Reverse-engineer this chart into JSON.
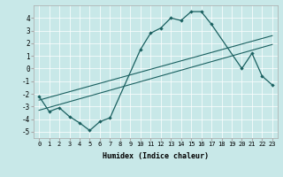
{
  "xlabel": "Humidex (Indice chaleur)",
  "background_color": "#c8e8e8",
  "line_color": "#1a6060",
  "grid_color": "#ffffff",
  "xlim": [
    -0.5,
    23.5
  ],
  "ylim": [
    -5.5,
    5.0
  ],
  "xticks": [
    0,
    1,
    2,
    3,
    4,
    5,
    6,
    7,
    8,
    9,
    10,
    11,
    12,
    13,
    14,
    15,
    16,
    17,
    18,
    19,
    20,
    21,
    22,
    23
  ],
  "yticks": [
    -5,
    -4,
    -3,
    -2,
    -1,
    0,
    1,
    2,
    3,
    4
  ],
  "main_x": [
    0,
    1,
    2,
    3,
    4,
    5,
    6,
    7,
    10,
    11,
    12,
    13,
    14,
    15,
    16,
    17,
    20,
    21,
    22,
    23
  ],
  "main_y": [
    -2.2,
    -3.4,
    -3.1,
    -3.8,
    -4.3,
    -4.9,
    -4.2,
    -3.9,
    1.5,
    2.8,
    3.2,
    4.0,
    3.8,
    4.5,
    4.5,
    3.5,
    0.0,
    1.2,
    -0.6,
    -1.3
  ],
  "line1_x": [
    0,
    23
  ],
  "line1_y": [
    -2.5,
    2.6
  ],
  "line2_x": [
    0,
    23
  ],
  "line2_y": [
    -3.3,
    1.9
  ]
}
